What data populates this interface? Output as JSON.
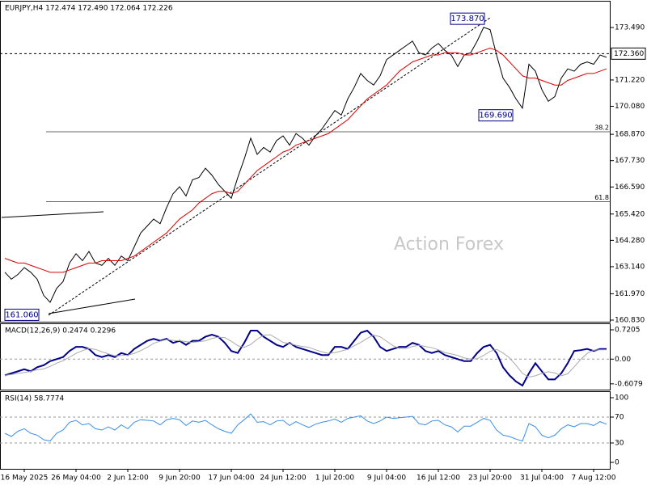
{
  "chart_data": [
    {
      "type": "line",
      "title": "EURJPY,H4  172.474 172.490 172.064 172.226",
      "categories": [
        null,
        null,
        null,
        "16 May 2025",
        null,
        null,
        null,
        null,
        null,
        null,
        null,
        "26 May 04:00",
        null,
        null,
        null,
        null,
        null,
        null,
        null,
        "2 Jun 12:00",
        null,
        null,
        null,
        null,
        null,
        null,
        null,
        "9 Jun 20:00",
        null,
        null,
        null,
        null,
        null,
        null,
        null,
        "17 Jun 04:00",
        null,
        null,
        null,
        null,
        null,
        null,
        null,
        "24 Jun 12:00",
        null,
        null,
        null,
        null,
        null,
        null,
        null,
        "1 Jul 20:00",
        null,
        null,
        null,
        null,
        null,
        null,
        null,
        "9 Jul 04:00",
        null,
        null,
        null,
        null,
        null,
        null,
        null,
        "16 Jul 12:00",
        null,
        null,
        null,
        null,
        null,
        null,
        null,
        "23 Jul 20:00",
        null,
        null,
        null,
        null,
        null,
        null,
        null,
        "31 Jul 04:00",
        null,
        null,
        null,
        null,
        null,
        null,
        null,
        "7 Aug 12:00",
        null,
        null
      ],
      "series": [
        {
          "color": "#000000",
          "values": [
            162.9,
            162.6,
            162.8,
            163.1,
            162.9,
            162.6,
            161.9,
            161.6,
            162.2,
            162.5,
            163.3,
            163.7,
            163.4,
            163.8,
            163.3,
            163.2,
            163.5,
            163.2,
            163.6,
            163.4,
            164.0,
            164.6,
            164.9,
            165.2,
            165.0,
            165.7,
            166.3,
            166.6,
            166.2,
            166.9,
            167.0,
            167.4,
            167.1,
            166.7,
            166.4,
            166.1,
            167.0,
            167.8,
            168.7,
            168.0,
            168.3,
            168.1,
            168.6,
            168.8,
            168.4,
            168.9,
            168.7,
            168.4,
            168.8,
            169.1,
            169.5,
            169.9,
            169.7,
            170.4,
            170.9,
            171.5,
            171.2,
            171.0,
            171.4,
            172.1,
            172.3,
            172.5,
            172.7,
            172.9,
            172.4,
            172.3,
            172.6,
            172.8,
            172.5,
            172.3,
            171.8,
            172.3,
            172.4,
            172.9,
            173.5,
            173.4,
            172.3,
            171.3,
            170.9,
            170.4,
            170.0,
            171.9,
            171.6,
            170.8,
            170.3,
            170.5,
            171.3,
            171.7,
            171.6,
            171.9,
            172.0,
            171.9,
            172.3,
            172.2
          ]
        },
        {
          "color": "#dd0000",
          "values": [
            163.5,
            163.4,
            163.3,
            163.3,
            163.2,
            163.1,
            163.0,
            162.9,
            162.9,
            162.9,
            163.0,
            163.1,
            163.2,
            163.3,
            163.3,
            163.4,
            163.4,
            163.4,
            163.4,
            163.5,
            163.6,
            163.8,
            164.0,
            164.2,
            164.4,
            164.6,
            164.9,
            165.2,
            165.4,
            165.6,
            165.9,
            166.1,
            166.3,
            166.4,
            166.4,
            166.3,
            166.4,
            166.7,
            167.0,
            167.3,
            167.5,
            167.7,
            167.9,
            168.1,
            168.2,
            168.4,
            168.5,
            168.6,
            168.7,
            168.8,
            168.9,
            169.1,
            169.3,
            169.5,
            169.8,
            170.1,
            170.4,
            170.6,
            170.8,
            171.0,
            171.3,
            171.6,
            171.8,
            172.0,
            172.1,
            172.2,
            172.3,
            172.3,
            172.4,
            172.4,
            172.4,
            172.3,
            172.3,
            172.4,
            172.5,
            172.6,
            172.5,
            172.3,
            172.0,
            171.7,
            171.4,
            171.3,
            171.3,
            171.2,
            171.1,
            171.0,
            171.0,
            171.2,
            171.3,
            171.4,
            171.5,
            171.5,
            171.6,
            171.7
          ]
        }
      ],
      "ylim": [
        160.76,
        174.61
      ],
      "yticks": [
        {
          "value": 173.49,
          "label": "173.490"
        },
        {
          "value": 171.22,
          "label": "171.220"
        },
        {
          "value": 170.08,
          "label": "170.080"
        },
        {
          "value": 168.87,
          "label": "168.870"
        },
        {
          "value": 167.73,
          "label": "167.730"
        },
        {
          "value": 166.59,
          "label": "166.590"
        },
        {
          "value": 165.42,
          "label": "165.420"
        },
        {
          "value": 164.28,
          "label": "164.280"
        },
        {
          "value": 163.14,
          "label": "163.140"
        },
        {
          "value": 161.97,
          "label": "161.970"
        },
        {
          "value": 160.83,
          "label": "160.830"
        }
      ],
      "current_price": {
        "value": 172.36,
        "label": "172.360"
      },
      "levels": [
        {
          "value": 168.98,
          "label": "38.2"
        },
        {
          "value": 165.95,
          "label": "61.8"
        }
      ],
      "annotations": [
        {
          "value": 173.87,
          "label": "173.870"
        },
        {
          "value": 169.69,
          "label": "169.690"
        },
        {
          "value": 161.06,
          "label": "161.060"
        }
      ],
      "watermark": "Action Forex"
    },
    {
      "type": "line",
      "title": "MACD(12,26,9) 0.2474 0.2296",
      "series": [
        {
          "color": "#00008b",
          "values": [
            -0.4,
            -0.35,
            -0.3,
            -0.25,
            -0.3,
            -0.2,
            -0.15,
            -0.05,
            0.0,
            0.05,
            0.2,
            0.3,
            0.3,
            0.25,
            0.1,
            0.05,
            0.1,
            0.05,
            0.15,
            0.1,
            0.25,
            0.35,
            0.45,
            0.5,
            0.45,
            0.5,
            0.4,
            0.45,
            0.35,
            0.45,
            0.45,
            0.55,
            0.6,
            0.55,
            0.4,
            0.2,
            0.15,
            0.4,
            0.7,
            0.7,
            0.55,
            0.45,
            0.35,
            0.3,
            0.4,
            0.3,
            0.25,
            0.2,
            0.15,
            0.1,
            0.1,
            0.3,
            0.3,
            0.25,
            0.45,
            0.65,
            0.7,
            0.55,
            0.3,
            0.2,
            0.25,
            0.3,
            0.3,
            0.4,
            0.35,
            0.2,
            0.15,
            0.2,
            0.1,
            0.05,
            0.0,
            -0.05,
            -0.05,
            0.15,
            0.3,
            0.35,
            0.15,
            -0.2,
            -0.4,
            -0.55,
            -0.65,
            -0.35,
            -0.1,
            -0.3,
            -0.5,
            -0.5,
            -0.35,
            -0.1,
            0.2,
            0.22,
            0.25,
            0.2,
            0.25,
            0.25
          ]
        },
        {
          "color": "#aaaaaa",
          "values": [
            -0.4,
            -0.38,
            -0.35,
            -0.33,
            -0.3,
            -0.26,
            -0.24,
            -0.18,
            -0.1,
            -0.04,
            0.05,
            0.14,
            0.21,
            0.26,
            0.24,
            0.18,
            0.13,
            0.08,
            0.09,
            0.1,
            0.14,
            0.21,
            0.29,
            0.39,
            0.44,
            0.48,
            0.46,
            0.45,
            0.43,
            0.41,
            0.43,
            0.45,
            0.51,
            0.54,
            0.53,
            0.44,
            0.33,
            0.29,
            0.36,
            0.49,
            0.59,
            0.6,
            0.51,
            0.41,
            0.38,
            0.34,
            0.31,
            0.29,
            0.23,
            0.18,
            0.14,
            0.16,
            0.2,
            0.24,
            0.33,
            0.41,
            0.51,
            0.59,
            0.55,
            0.44,
            0.33,
            0.26,
            0.26,
            0.31,
            0.34,
            0.31,
            0.28,
            0.23,
            0.16,
            0.13,
            0.09,
            0.03,
            0.0,
            0.01,
            0.09,
            0.19,
            0.24,
            0.15,
            0.03,
            -0.15,
            -0.35,
            -0.44,
            -0.41,
            -0.35,
            -0.31,
            -0.34,
            -0.41,
            -0.36,
            -0.19,
            -0.01,
            0.14,
            0.22,
            0.23,
            0.23
          ]
        }
      ],
      "ylim": [
        -0.75,
        0.86
      ],
      "yticks": [
        0.7205,
        {
          "value": 0,
          "label": "0.00"
        },
        -0.6079
      ]
    },
    {
      "type": "line",
      "title": "RSI(14) 58.7774",
      "series": [
        {
          "color": "#3a8ee6",
          "values": [
            45,
            40,
            48,
            52,
            45,
            42,
            35,
            33,
            45,
            50,
            62,
            65,
            58,
            60,
            52,
            50,
            55,
            50,
            58,
            52,
            62,
            66,
            65,
            64,
            58,
            66,
            68,
            66,
            57,
            64,
            62,
            65,
            58,
            52,
            48,
            45,
            58,
            66,
            75,
            62,
            63,
            58,
            64,
            65,
            57,
            63,
            58,
            54,
            59,
            62,
            64,
            67,
            62,
            68,
            70,
            72,
            64,
            60,
            64,
            70,
            68,
            69,
            70,
            71,
            60,
            58,
            64,
            65,
            58,
            55,
            47,
            56,
            56,
            62,
            68,
            65,
            50,
            42,
            40,
            36,
            33,
            60,
            55,
            42,
            38,
            42,
            52,
            58,
            55,
            60,
            60,
            57,
            63,
            59
          ]
        }
      ],
      "ylim": [
        -10,
        108.75
      ],
      "yticks": [
        100,
        70,
        30,
        0
      ],
      "levels": [
        70,
        30
      ]
    }
  ]
}
